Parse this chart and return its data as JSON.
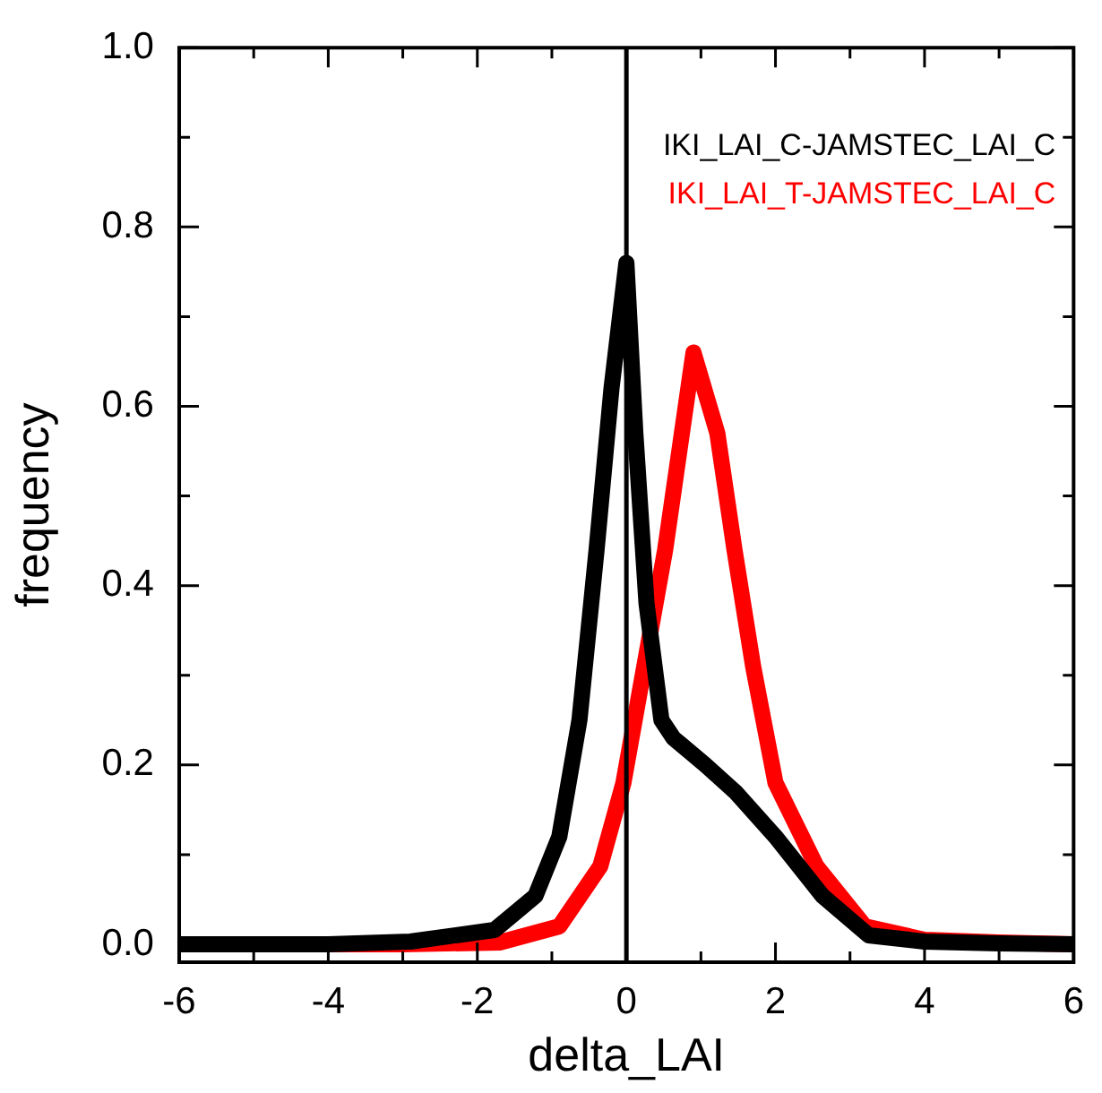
{
  "chart_data": {
    "type": "line",
    "xlabel": "delta_LAI",
    "ylabel": "frequency",
    "legend": "top right",
    "grid": false,
    "marker": "none",
    "line_style": "solid",
    "xlim": [
      -6,
      6
    ],
    "xticks": [
      -6,
      {
        "value": -5,
        "label": null
      },
      -4,
      {
        "value": -3,
        "label": null
      },
      -2,
      {
        "value": -1,
        "label": null
      },
      0,
      {
        "value": 1,
        "label": null
      },
      2,
      {
        "value": 3,
        "label": null
      },
      4,
      {
        "value": 5,
        "label": null
      },
      6
    ],
    "ylim": [
      -0.02,
      1
    ],
    "yticks": [
      {
        "value": 0,
        "label": "0.0"
      },
      {
        "value": 0.1,
        "label": null
      },
      {
        "value": 0.2,
        "label": "0.2"
      },
      {
        "value": 0.3,
        "label": null
      },
      {
        "value": 0.4,
        "label": "0.4"
      },
      {
        "value": 0.5,
        "label": null
      },
      {
        "value": 0.6,
        "label": "0.6"
      },
      {
        "value": 0.7,
        "label": null
      },
      {
        "value": 0.8,
        "label": "0.8"
      },
      {
        "value": 0.9,
        "label": null
      },
      {
        "value": 1,
        "label": "1.0"
      }
    ],
    "series": [
      {
        "name": "IKI_LAI_C-JAMSTEC_LAI_C",
        "color": "#000000",
        "x": [
          -6,
          -4,
          -2.9,
          -1.77,
          -1.22,
          -0.9,
          -0.63,
          -0.4,
          -0.2,
          0,
          0.12,
          0.27,
          0.47,
          0.63,
          1.06,
          1.46,
          2.0,
          2.63,
          3.25,
          4,
          5,
          6
        ],
        "values": [
          0,
          0,
          0.003,
          0.016,
          0.054,
          0.12,
          0.25,
          0.44,
          0.62,
          0.76,
          0.57,
          0.38,
          0.25,
          0.23,
          0.2,
          0.17,
          0.12,
          0.054,
          0.01,
          0.003,
          0.001,
          0
        ]
      },
      {
        "name": "IKI_LAI_T-JAMSTEC_LAI_C",
        "color": "#ff0000",
        "x": [
          -6,
          -3,
          -1.7,
          -0.9,
          -0.35,
          -0.04,
          0.24,
          0.52,
          0.9,
          1.22,
          1.45,
          1.7,
          2.0,
          2.55,
          3.2,
          4,
          5,
          6
        ],
        "values": [
          0,
          0,
          0.002,
          0.02,
          0.087,
          0.18,
          0.31,
          0.44,
          0.66,
          0.57,
          0.44,
          0.31,
          0.18,
          0.087,
          0.02,
          0.005,
          0.002,
          0
        ]
      }
    ],
    "ref_lines": [
      {
        "axis": "x",
        "value": 0,
        "color": "#000000"
      }
    ]
  }
}
